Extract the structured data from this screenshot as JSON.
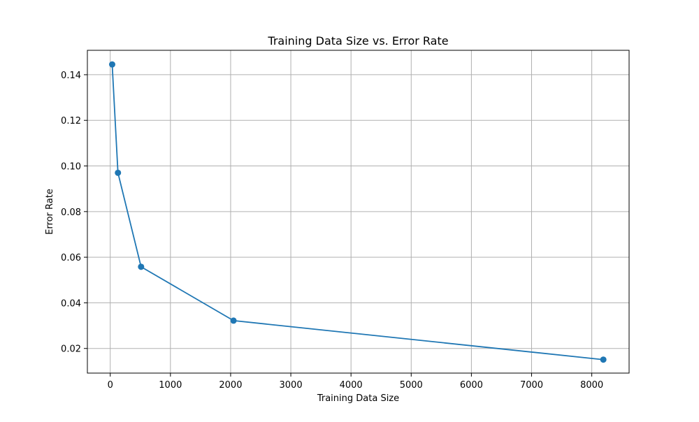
{
  "chart_data": {
    "type": "line",
    "title": "Training Data Size vs. Error Rate",
    "xlabel": "Training Data Size",
    "ylabel": "Error Rate",
    "xlim": [
      -380,
      8620
    ],
    "ylim": [
      0.0092,
      0.1507
    ],
    "x_ticks": [
      0,
      1000,
      2000,
      3000,
      4000,
      5000,
      6000,
      7000,
      8000
    ],
    "x_tick_labels": [
      "0",
      "1000",
      "2000",
      "3000",
      "4000",
      "5000",
      "6000",
      "7000",
      "8000"
    ],
    "y_ticks": [
      0.02,
      0.04,
      0.06,
      0.08,
      0.1,
      0.12,
      0.14
    ],
    "y_tick_labels": [
      "0.02",
      "0.04",
      "0.06",
      "0.08",
      "0.10",
      "0.12",
      "0.14"
    ],
    "grid": true,
    "marker": "circle",
    "series": [
      {
        "x": [
          32,
          128,
          512,
          2048,
          8192
        ],
        "y": [
          0.1445,
          0.097,
          0.0558,
          0.0322,
          0.0151
        ],
        "color": "#1f77b4"
      }
    ]
  }
}
